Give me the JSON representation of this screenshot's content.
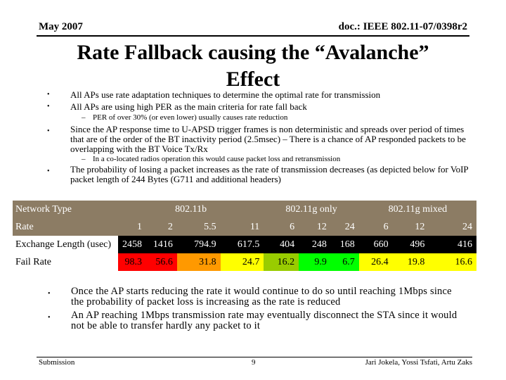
{
  "header": {
    "date": "May 2007",
    "doc": "doc.: IEEE 802.11-07/0398r2"
  },
  "title": "Rate Fallback causing the “Avalanche” Effect",
  "bullets": [
    "All APs use rate adaptation techniques to determine the optimal rate for transmission",
    "All APs are using high PER as the main criteria for rate fall back"
  ],
  "sub1": "PER of over 30% (or even lower) usually causes rate reduction",
  "bullet3": "Since the AP response time to U-APSD trigger frames is non deterministic and spreads over period of times that are of the order of the BT inactivity period (2.5msec) – There is a chance of AP responded packets to be overlapping with the BT Voice Tx/Rx",
  "sub2": "In a co-located radios operation this would cause packet loss and retransmission",
  "bullet4": "The probability of losing a packet increases as the rate of transmission decreases (as depicted below for VoIP packet length of 244 Bytes (G711 and additional headers)",
  "table": {
    "network_label": "Network Type",
    "networks": [
      "802.11b",
      "802.11g only",
      "802.11g mixed"
    ],
    "rate_label": "Rate",
    "rates": [
      "1",
      "2",
      "5.5",
      "11",
      "6",
      "12",
      "24",
      "6",
      "12",
      "24"
    ],
    "exchange_label": "Exchange Length (usec)",
    "exchange": [
      "2458",
      "1416",
      "794.9",
      "617.5",
      "404",
      "248",
      "168",
      "660",
      "496",
      "416"
    ],
    "fail_label": "Fail Rate",
    "fail": [
      "98.3",
      "56.6",
      "31.8",
      "24.7",
      "16.2",
      "9.9",
      "6.7",
      "26.4",
      "19.8",
      "16.6"
    ],
    "fail_colors": [
      "#ff0000",
      "#ff0000",
      "#ff9900",
      "#ffff00",
      "#99cc00",
      "#00ff00",
      "#00ff00",
      "#ffff00",
      "#ffff00",
      "#ffff00"
    ]
  },
  "bottom_bullets": [
    "Once the AP starts reducing the rate it would continue to do so until reaching 1Mbps since the probability of packet loss is increasing as the rate is reduced",
    "An AP reaching 1Mbps transmission rate may eventually disconnect the STA since it would not be able to transfer hardly any packet to it"
  ],
  "footer": {
    "left": "Submission",
    "page": "9",
    "right": "Jari Jokela, Yossi Tsfati, Artu Zaks"
  }
}
